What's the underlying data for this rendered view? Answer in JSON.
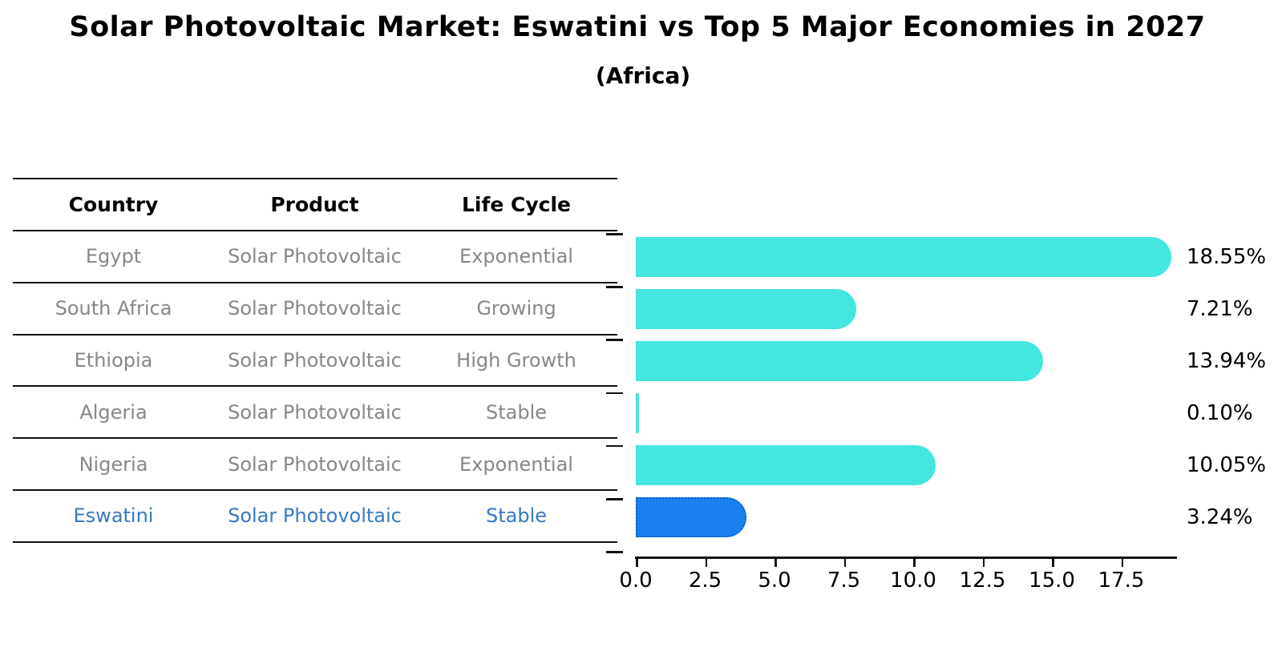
{
  "header": {
    "title": "Solar Photovoltaic Market: Eswatini vs Top 5 Major Economies in 2027",
    "subtitle": "(Africa)"
  },
  "table": {
    "columns": [
      "Country",
      "Product",
      "Life Cycle"
    ],
    "rows": [
      {
        "country": "Egypt",
        "product": "Solar Photovoltaic",
        "life_cycle": "Exponential",
        "highlight": false
      },
      {
        "country": "South Africa",
        "product": "Solar Photovoltaic",
        "life_cycle": "Growing",
        "highlight": false
      },
      {
        "country": "Ethiopia",
        "product": "Solar Photovoltaic",
        "life_cycle": "High Growth",
        "highlight": false
      },
      {
        "country": "Algeria",
        "product": "Solar Photovoltaic",
        "life_cycle": "Stable",
        "highlight": false
      },
      {
        "country": "Nigeria",
        "product": "Solar Photovoltaic",
        "life_cycle": "Exponential",
        "highlight": false
      },
      {
        "country": "Eswatini",
        "product": "Solar Photovoltaic",
        "life_cycle": "Stable",
        "highlight": true
      }
    ]
  },
  "chart_data": {
    "type": "bar",
    "orientation": "horizontal",
    "title": "Solar Photovoltaic Market: Eswatini vs Top 5 Major Economies in 2027",
    "subtitle": "(Africa)",
    "categories": [
      "Egypt",
      "South Africa",
      "Ethiopia",
      "Algeria",
      "Nigeria",
      "Eswatini"
    ],
    "values": [
      18.55,
      7.21,
      13.94,
      0.1,
      10.05,
      3.24
    ],
    "value_labels": [
      "18.55%",
      "7.21%",
      "13.94%",
      "0.10%",
      "10.05%",
      "3.24%"
    ],
    "xlabel": "",
    "ylabel": "",
    "xlim": [
      0,
      19.5
    ],
    "x_ticks": [
      "0.0",
      "2.5",
      "5.0",
      "7.5",
      "10.0",
      "12.5",
      "15.0",
      "17.5"
    ],
    "grid": false,
    "legend": false,
    "highlight_index": 5
  },
  "colors": {
    "bar": "#45e6df",
    "highlight_fill": "#1a80f0",
    "highlight_border": "#0e5fc9",
    "row_text": "#878787",
    "highlight_text": "#3779c2",
    "axis": "#111111"
  }
}
